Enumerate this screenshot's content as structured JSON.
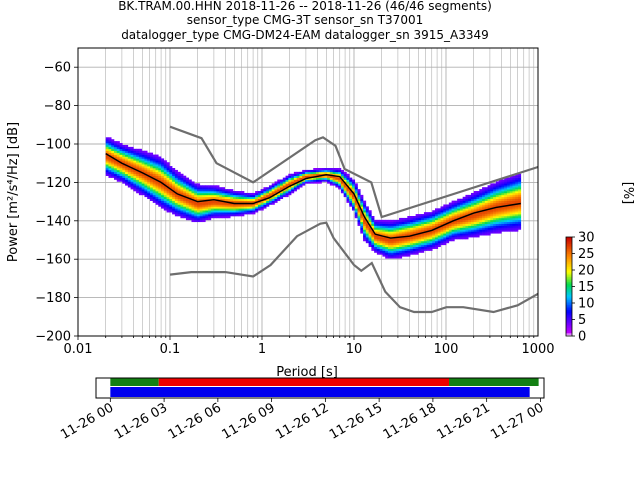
{
  "title": {
    "line1": "BK.TRAM.00.HHN   2018-11-26 -- 2018-11-26  (46/46 segments)",
    "line2": "sensor_type CMG-3T sensor_sn T37001",
    "line3": "datalogger_type CMG-DM24-EAM datalogger_sn 3915_A3349"
  },
  "colors": {
    "noise_models": "#6e6e6e",
    "mean": "#000000",
    "mode": "#000000",
    "coverage_good": "#138013",
    "coverage_bad": "#ee0000",
    "data_bar": "#0000ee"
  },
  "chart_data": [
    {
      "type": "heatmap",
      "title": "",
      "xlabel": "Period [s]",
      "ylabel": "Power [m²/s⁴/Hz] [dB]",
      "xscale": "log",
      "xlim": [
        0.01,
        1000
      ],
      "ylim": [
        -200,
        -50
      ],
      "xticks": [
        0.01,
        0.1,
        1,
        10,
        100,
        1000
      ],
      "xtick_labels": [
        "0.01",
        "0.1",
        "1",
        "10",
        "100",
        "1000"
      ],
      "yticks": [
        -200,
        -180,
        -160,
        -140,
        -120,
        -100,
        -80,
        -60
      ],
      "ytick_labels": [
        "−200",
        "−180",
        "−160",
        "−140",
        "−120",
        "−100",
        "−80",
        "−60"
      ],
      "grid": true,
      "colorbar": {
        "label": "[%]",
        "range": [
          0,
          30
        ],
        "ticks": [
          "0",
          "5",
          "10",
          "15",
          "20",
          "25",
          "30"
        ]
      },
      "ppsd_band": [
        {
          "period": 0.02,
          "center": -106,
          "spread": 6
        },
        {
          "period": 0.03,
          "center": -110,
          "spread": 6
        },
        {
          "period": 0.05,
          "center": -115,
          "spread": 7
        },
        {
          "period": 0.08,
          "center": -120,
          "spread": 8
        },
        {
          "period": 0.12,
          "center": -126,
          "spread": 7
        },
        {
          "period": 0.2,
          "center": -131,
          "spread": 6
        },
        {
          "period": 0.3,
          "center": -130,
          "spread": 5
        },
        {
          "period": 0.5,
          "center": -131,
          "spread": 4
        },
        {
          "period": 0.8,
          "center": -131,
          "spread": 3
        },
        {
          "period": 1.2,
          "center": -127,
          "spread": 3
        },
        {
          "period": 2,
          "center": -121,
          "spread": 3
        },
        {
          "period": 3,
          "center": -117,
          "spread": 2
        },
        {
          "period": 5,
          "center": -116,
          "spread": 2
        },
        {
          "period": 7,
          "center": -118,
          "spread": 3
        },
        {
          "period": 10,
          "center": -127,
          "spread": 5
        },
        {
          "period": 13,
          "center": -140,
          "spread": 6
        },
        {
          "period": 17,
          "center": -148,
          "spread": 5
        },
        {
          "period": 25,
          "center": -150,
          "spread": 6
        },
        {
          "period": 40,
          "center": -148,
          "spread": 6
        },
        {
          "period": 70,
          "center": -145,
          "spread": 6
        },
        {
          "period": 120,
          "center": -140,
          "spread": 6
        },
        {
          "period": 200,
          "center": -137,
          "spread": 7
        },
        {
          "period": 350,
          "center": -133,
          "spread": 8
        },
        {
          "period": 650,
          "center": -130,
          "spread": 9
        }
      ],
      "mean": [
        {
          "period": 0.02,
          "value": -105
        },
        {
          "period": 0.03,
          "value": -110
        },
        {
          "period": 0.05,
          "value": -115
        },
        {
          "period": 0.08,
          "value": -120
        },
        {
          "period": 0.12,
          "value": -126
        },
        {
          "period": 0.2,
          "value": -130
        },
        {
          "period": 0.3,
          "value": -129
        },
        {
          "period": 0.5,
          "value": -131
        },
        {
          "period": 0.8,
          "value": -131
        },
        {
          "period": 1.2,
          "value": -128
        },
        {
          "period": 2,
          "value": -122
        },
        {
          "period": 3,
          "value": -118
        },
        {
          "period": 5,
          "value": -116
        },
        {
          "period": 7,
          "value": -117
        },
        {
          "period": 10,
          "value": -126
        },
        {
          "period": 13,
          "value": -138
        },
        {
          "period": 17,
          "value": -147
        },
        {
          "period": 25,
          "value": -149
        },
        {
          "period": 40,
          "value": -148
        },
        {
          "period": 70,
          "value": -145
        },
        {
          "period": 120,
          "value": -140
        },
        {
          "period": 200,
          "value": -136
        },
        {
          "period": 350,
          "value": -133
        },
        {
          "period": 650,
          "value": -131
        }
      ],
      "high_noise_model": [
        {
          "period": 0.1,
          "value": -91
        },
        {
          "period": 0.22,
          "value": -97
        },
        {
          "period": 0.32,
          "value": -110
        },
        {
          "period": 0.8,
          "value": -120
        },
        {
          "period": 3.8,
          "value": -98
        },
        {
          "period": 4.6,
          "value": -96.5
        },
        {
          "period": 6.3,
          "value": -101
        },
        {
          "period": 7.9,
          "value": -113
        },
        {
          "period": 15.4,
          "value": -120
        },
        {
          "period": 20,
          "value": -138
        },
        {
          "period": 1000,
          "value": -112
        }
      ],
      "low_noise_model": [
        {
          "period": 0.1,
          "value": -168
        },
        {
          "period": 0.17,
          "value": -166.7
        },
        {
          "period": 0.4,
          "value": -166.7
        },
        {
          "period": 0.8,
          "value": -169
        },
        {
          "period": 1.24,
          "value": -163
        },
        {
          "period": 2.4,
          "value": -148
        },
        {
          "period": 4.3,
          "value": -141.5
        },
        {
          "period": 5,
          "value": -141
        },
        {
          "period": 6,
          "value": -149
        },
        {
          "period": 10,
          "value": -163
        },
        {
          "period": 12,
          "value": -166
        },
        {
          "period": 15.6,
          "value": -162
        },
        {
          "period": 21.9,
          "value": -177
        },
        {
          "period": 31.6,
          "value": -185
        },
        {
          "period": 45,
          "value": -187.5
        },
        {
          "period": 70,
          "value": -187.5
        },
        {
          "period": 101,
          "value": -185
        },
        {
          "period": 154,
          "value": -185
        },
        {
          "period": 328,
          "value": -187.5
        },
        {
          "period": 600,
          "value": -184
        },
        {
          "period": 1000,
          "value": -178
        }
      ]
    },
    {
      "type": "timeline",
      "title": "",
      "xlabel": "",
      "start_hours": -0.8,
      "end_hours": 24.2,
      "ticks": [
        0,
        3,
        6,
        9,
        12,
        15,
        18,
        21,
        24
      ],
      "tick_labels": [
        "11-26 00",
        "11-26 03",
        "11-26 06",
        "11-26 09",
        "11-26 12",
        "11-26 15",
        "11-26 18",
        "11-26 21",
        "11-27 00"
      ],
      "coverage_good": [
        [
          0,
          2.7
        ],
        [
          18.9,
          23.9
        ]
      ],
      "coverage_bad": [
        [
          2.7,
          18.9
        ]
      ],
      "data": [
        [
          0,
          23.4
        ]
      ]
    }
  ]
}
